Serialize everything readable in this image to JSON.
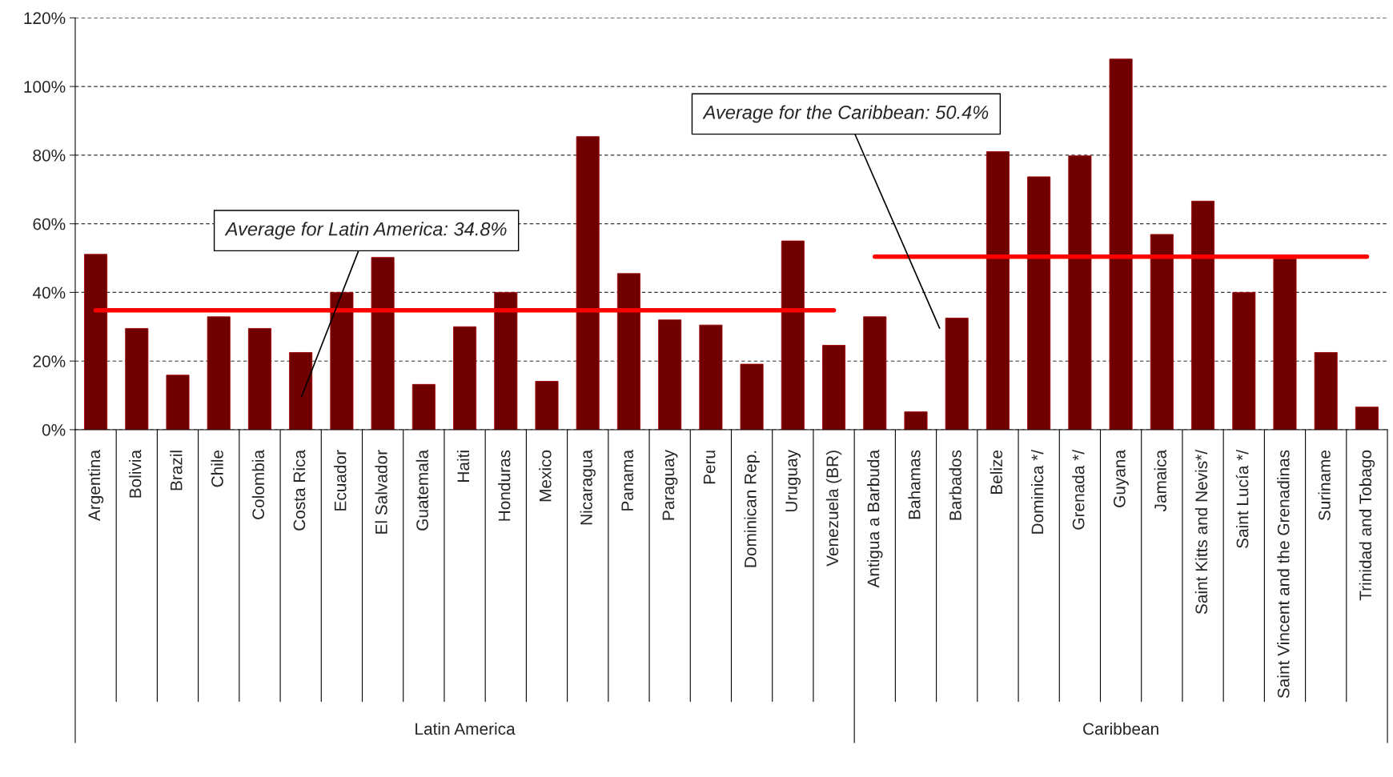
{
  "chart_data": {
    "type": "bar",
    "categories": [
      "Argentina",
      "Bolivia",
      "Brazil",
      "Chile",
      "Colombia",
      "Costa Rica",
      "Ecuador",
      "El Salvador",
      "Guatemala",
      "Haiti",
      "Honduras",
      "Mexico",
      "Nicaragua",
      "Panama",
      "Paraguay",
      "Peru",
      "Dominican Rep.",
      "Uruguay",
      "Venezuela (BR)",
      "Antigua a Barbuda",
      "Bahamas",
      "Barbados",
      "Belize",
      "Dominica */",
      "Grenada */",
      "Guyana",
      "Jamaica",
      "Saint Kitts and Nevis*/",
      "Saint Lucía */",
      "Saint Vincent and the Grenadinas",
      "Suriname",
      "Trinidad and Tobago"
    ],
    "series": [
      {
        "color": "#700000",
        "values": [
          51.1,
          29.5,
          15.9,
          32.9,
          29.5,
          22.5,
          40,
          50.2,
          13.2,
          30.0,
          40,
          14.1,
          85.4,
          45.5,
          32.0,
          30.5,
          19.1,
          55.0,
          24.6,
          32.9,
          5.2,
          32.5,
          81,
          73.7,
          79.8,
          108.0,
          56.9,
          66.6,
          40.0,
          49.8,
          22.5,
          6.6
        ]
      },
      {
        "type": "line",
        "color": "#ff0000",
        "values": [
          34.8,
          34.8,
          34.8,
          34.8,
          34.8,
          34.8,
          34.8,
          34.8,
          34.8,
          34.8,
          34.8,
          34.8,
          34.8,
          34.8,
          34.8,
          34.8,
          34.8,
          34.8,
          34.8,
          null,
          null,
          null,
          null,
          null,
          null,
          null,
          null,
          null,
          null,
          null,
          null,
          null
        ]
      },
      {
        "type": "line",
        "color": "#ff0000",
        "values": [
          null,
          null,
          null,
          null,
          null,
          null,
          null,
          null,
          null,
          null,
          null,
          null,
          null,
          null,
          null,
          null,
          null,
          null,
          null,
          50.4,
          50.4,
          50.4,
          50.4,
          50.4,
          50.4,
          50.4,
          50.4,
          50.4,
          50.4,
          50.4,
          50.4,
          50.4
        ]
      }
    ],
    "ylim": [
      0,
      120
    ],
    "yticks": [
      {
        "value": 0,
        "label": "0%"
      },
      {
        "value": 20,
        "label": "20%"
      },
      {
        "value": 40,
        "label": "40%"
      },
      {
        "value": 60,
        "label": "60%"
      },
      {
        "value": 80,
        "label": "80%"
      },
      {
        "value": 100,
        "label": "100%"
      },
      {
        "value": 120,
        "label": "120%"
      }
    ],
    "grid": "y",
    "annotations": [
      "Average for Latin America: 34.8%",
      "Average for the Caribbean: 50.4%",
      "Latin America",
      "Caribbean"
    ]
  }
}
